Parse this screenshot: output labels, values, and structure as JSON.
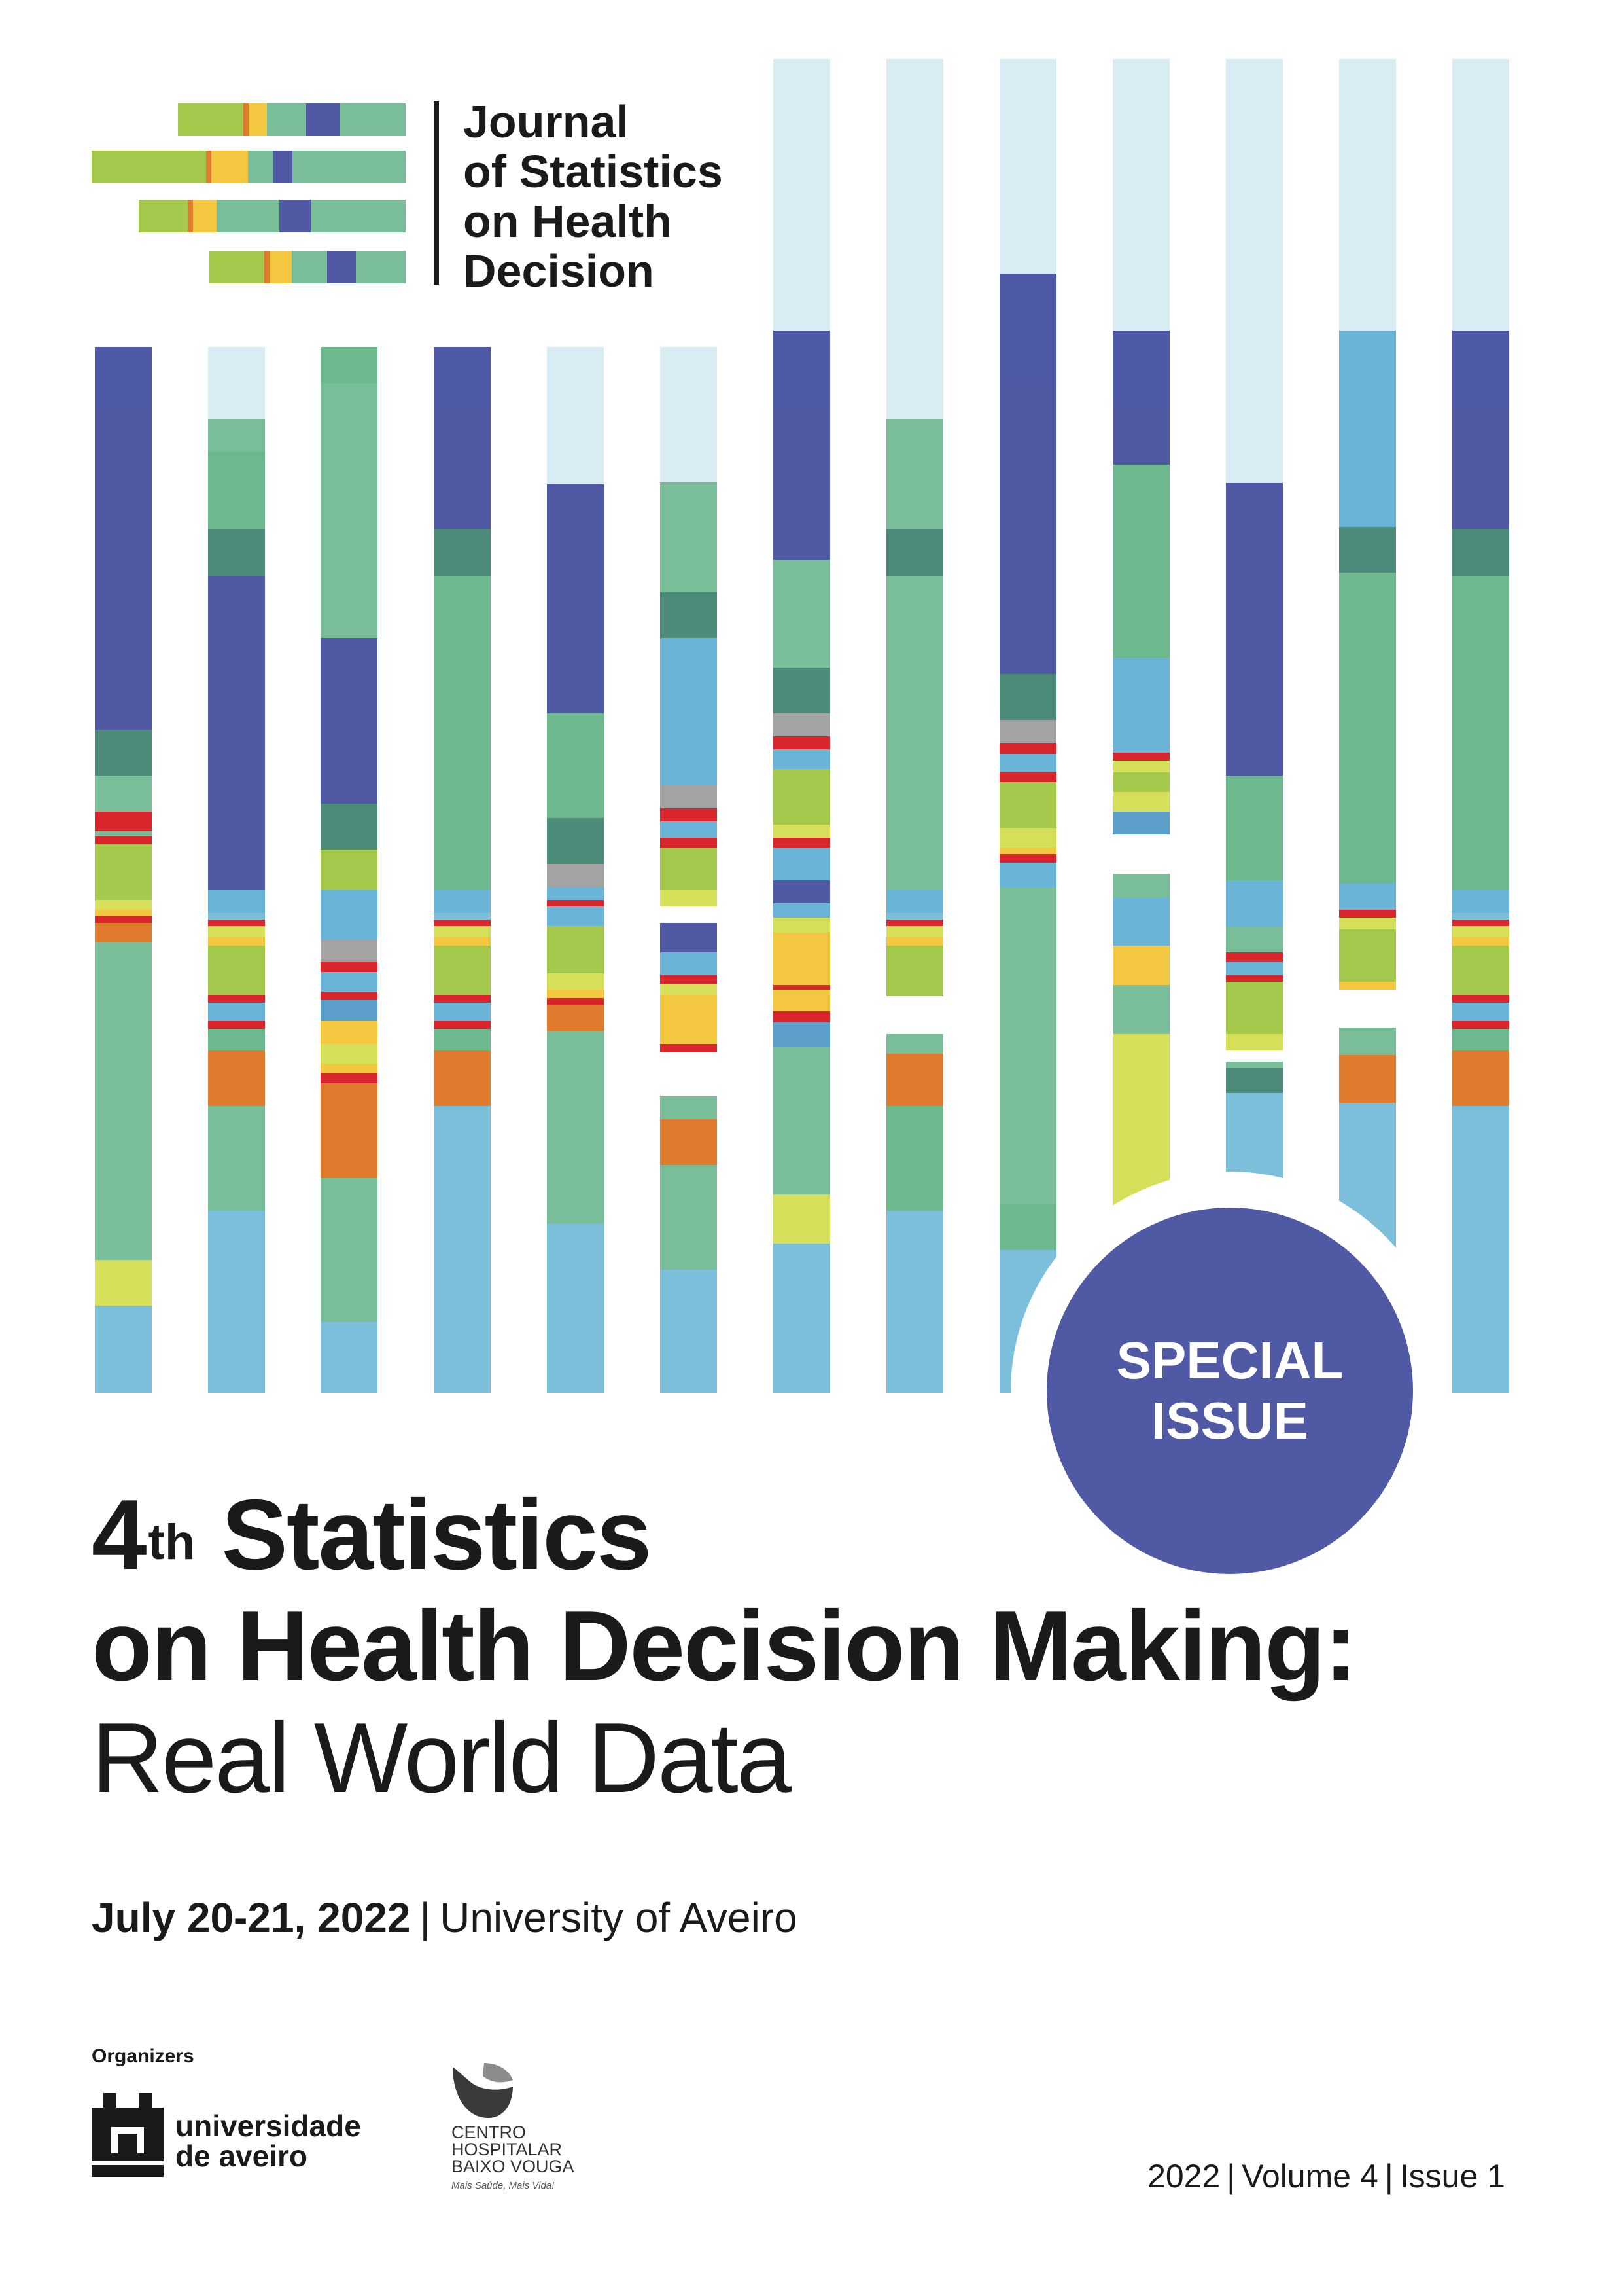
{
  "journal": {
    "title_lines": [
      "Journal",
      "of Statistics",
      "on Health",
      "Decision"
    ]
  },
  "badge": {
    "lines": [
      "SPECIAL",
      "ISSUE"
    ],
    "color": "#5059a4"
  },
  "headline": {
    "number": "4",
    "superscript": "th",
    "line1_rest": "Statistics",
    "line2": "on Health Decision Making:",
    "line3": "Real World Data"
  },
  "event": {
    "date": "July 20-21, 2022",
    "separator": "|",
    "venue": "University of Aveiro"
  },
  "organizers": {
    "label": "Organizers",
    "university": {
      "line1": "universidade",
      "line2": "de aveiro",
      "logo": "university-of-aveiro-castle-logo"
    },
    "hospital": {
      "line1": "CENTRO",
      "line2": "HOSPITALAR",
      "line3": "BAIXO VOUGA",
      "tagline": "Mais Saúde, Mais Vida!",
      "logo": "chbv-leaf-logo"
    }
  },
  "issue": {
    "year": "2022",
    "volume": "Volume 4",
    "issue": "Issue 1",
    "separator": "|"
  },
  "palette": {
    "pale_blue": "#d9ecf4",
    "indigo": "#5059a4",
    "navy_indigo": "#4e5aa8",
    "dark_teal": "#4c8a7a",
    "mint": "#79bd99",
    "green": "#6db88c",
    "lime": "#a3c84b",
    "yellow_green": "#d6df5a",
    "yellow": "#f3c73f",
    "orange": "#e07b2e",
    "red": "#d8262c",
    "gray": "#a3a3a3",
    "sky_blue": "#6ab4d8",
    "light_blue": "#7bbfdb",
    "cerulean": "#5d9fcb"
  }
}
